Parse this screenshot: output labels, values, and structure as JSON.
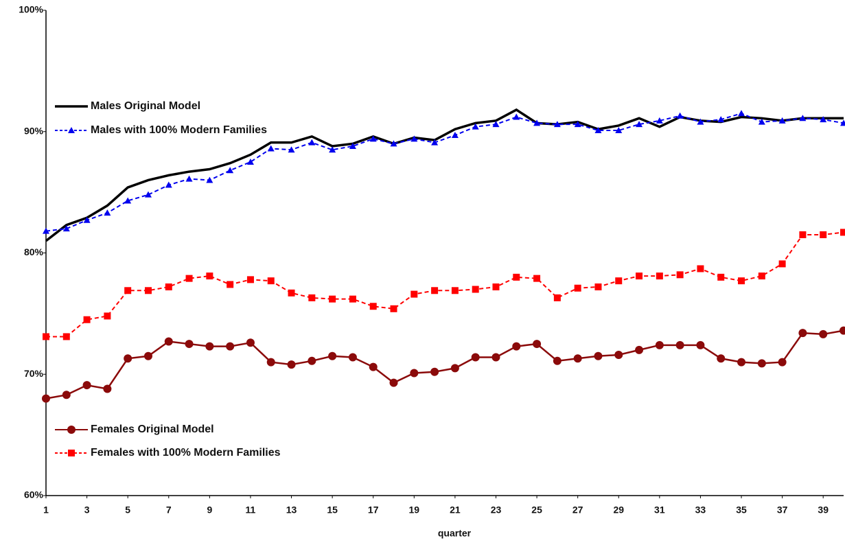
{
  "chart_data": {
    "type": "line",
    "xlabel": "quarter",
    "x": [
      1,
      2,
      3,
      4,
      5,
      6,
      7,
      8,
      9,
      10,
      11,
      12,
      13,
      14,
      15,
      16,
      17,
      18,
      19,
      20,
      21,
      22,
      23,
      24,
      25,
      26,
      27,
      28,
      29,
      30,
      31,
      32,
      33,
      34,
      35,
      36,
      37,
      38,
      39,
      40
    ],
    "xlim": [
      1,
      40
    ],
    "xticks": [
      1,
      3,
      5,
      7,
      9,
      11,
      13,
      15,
      17,
      19,
      21,
      23,
      25,
      27,
      29,
      31,
      33,
      35,
      37,
      39
    ],
    "ylim": [
      60,
      100
    ],
    "yticks": [
      {
        "value": 60,
        "label": "60%"
      },
      {
        "value": 70,
        "label": "70%"
      },
      {
        "value": 80,
        "label": "80%"
      },
      {
        "value": 90,
        "label": "90%"
      },
      {
        "value": 100,
        "label": "100%"
      }
    ],
    "grid": false,
    "series": [
      {
        "name": "Males  Original Model",
        "color": "#000000",
        "marker": "none",
        "dash": false,
        "values": [
          81.0,
          82.3,
          82.9,
          83.9,
          85.4,
          86.0,
          86.4,
          86.7,
          86.9,
          87.4,
          88.1,
          89.1,
          89.1,
          89.6,
          88.8,
          89.0,
          89.6,
          89.0,
          89.5,
          89.3,
          90.2,
          90.7,
          90.9,
          91.8,
          90.7,
          90.6,
          90.8,
          90.2,
          90.5,
          91.1,
          90.4,
          91.2,
          90.9,
          90.8,
          91.2,
          91.1,
          90.9,
          91.1,
          91.1,
          91.1
        ]
      },
      {
        "name": "Males  with 100% Modern Families",
        "color": "#0000ee",
        "marker": "triangle",
        "dash": true,
        "values": [
          81.8,
          82.0,
          82.7,
          83.3,
          84.3,
          84.8,
          85.6,
          86.1,
          86.0,
          86.8,
          87.5,
          88.6,
          88.5,
          89.1,
          88.5,
          88.8,
          89.4,
          89.0,
          89.4,
          89.1,
          89.7,
          90.4,
          90.6,
          91.2,
          90.7,
          90.6,
          90.6,
          90.1,
          90.1,
          90.6,
          90.9,
          91.3,
          90.8,
          91.0,
          91.5,
          90.8,
          90.9,
          91.1,
          91.0,
          90.7
        ]
      },
      {
        "name": "Females  Original Model",
        "color": "#8b0a0a",
        "marker": "circle",
        "dash": false,
        "values": [
          68.0,
          68.3,
          69.1,
          68.8,
          71.3,
          71.5,
          72.7,
          72.5,
          72.3,
          72.3,
          72.6,
          71.0,
          70.8,
          71.1,
          71.5,
          71.4,
          70.6,
          69.3,
          70.1,
          70.2,
          70.5,
          71.4,
          71.4,
          72.3,
          72.5,
          71.1,
          71.3,
          71.5,
          71.6,
          72.0,
          72.4,
          72.4,
          72.4,
          71.3,
          71.0,
          70.9,
          71.0,
          73.4,
          73.3,
          73.6
        ]
      },
      {
        "name": "Females  with 100% Modern Families",
        "color": "#ff0000",
        "marker": "square",
        "dash": true,
        "values": [
          73.1,
          73.1,
          74.5,
          74.8,
          76.9,
          76.9,
          77.2,
          77.9,
          78.1,
          77.4,
          77.8,
          77.7,
          76.7,
          76.3,
          76.2,
          76.2,
          75.6,
          75.4,
          76.6,
          76.9,
          76.9,
          77.0,
          77.2,
          78.0,
          77.9,
          76.3,
          77.1,
          77.2,
          77.7,
          78.1,
          78.1,
          78.2,
          78.7,
          78.0,
          77.7,
          78.1,
          79.1,
          81.5,
          81.5,
          81.7
        ]
      }
    ]
  }
}
